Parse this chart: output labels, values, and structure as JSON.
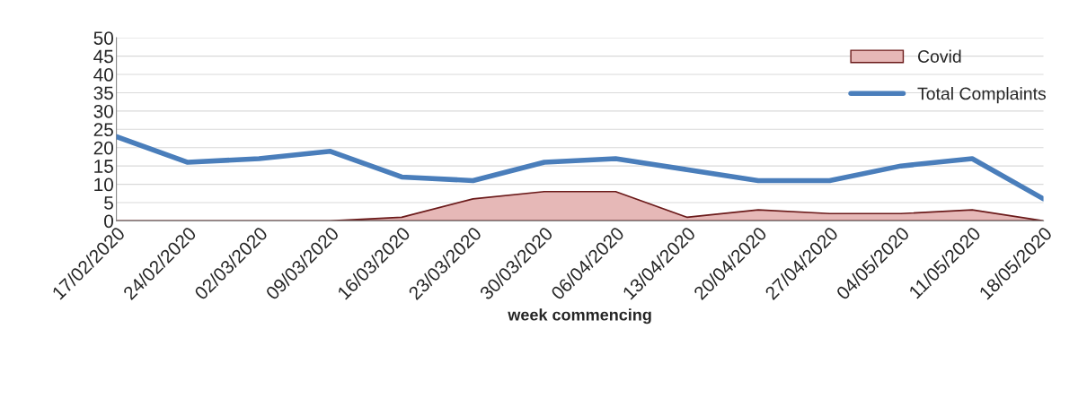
{
  "chart_data": {
    "type": "line",
    "xlabel": "week commencing",
    "categories": [
      "17/02/2020",
      "24/02/2020",
      "02/03/2020",
      "09/03/2020",
      "16/03/2020",
      "23/03/2020",
      "30/03/2020",
      "06/04/2020",
      "13/04/2020",
      "20/04/2020",
      "27/04/2020",
      "04/05/2020",
      "11/05/2020",
      "18/05/2020"
    ],
    "series": [
      {
        "name": "Covid",
        "type": "area",
        "color": "#e6b8b7",
        "values": [
          0,
          0,
          0,
          0,
          1,
          6,
          8,
          8,
          1,
          3,
          2,
          2,
          3,
          0
        ]
      },
      {
        "name": "Total Complaints",
        "color": "#4a7ebb",
        "values": [
          23,
          16,
          17,
          19,
          12,
          11,
          16,
          17,
          14,
          11,
          11,
          15,
          17,
          6
        ]
      }
    ],
    "ylim": [
      0,
      50
    ],
    "yticks": [
      0,
      5,
      10,
      15,
      20,
      25,
      30,
      35,
      40,
      45,
      50
    ],
    "grid": "y",
    "legend": "top right",
    "marker": "none",
    "line_style": "solid"
  }
}
